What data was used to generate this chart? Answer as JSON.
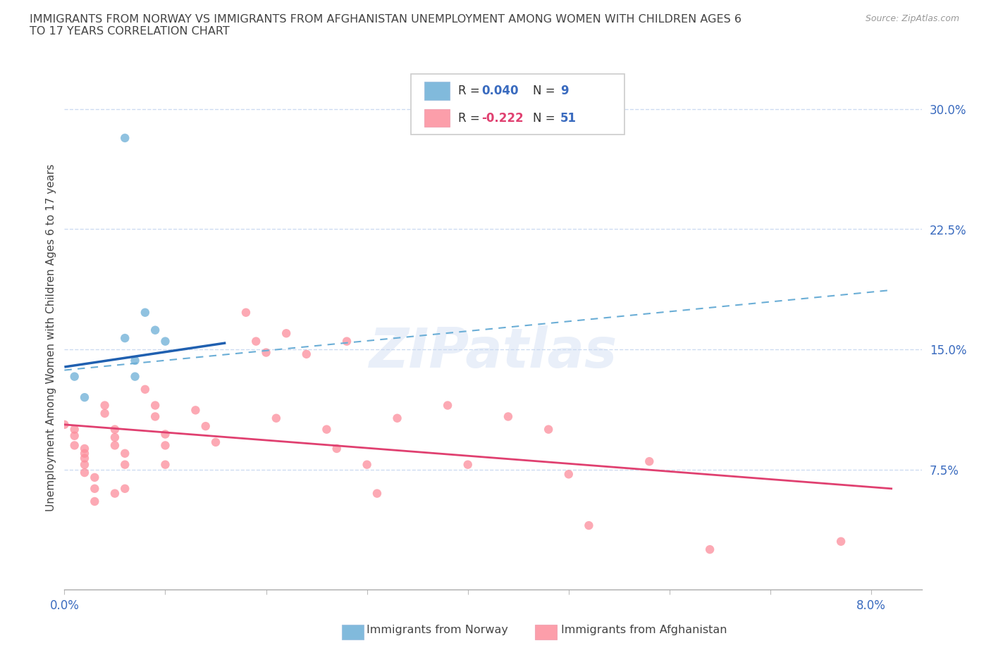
{
  "title_line1": "IMMIGRANTS FROM NORWAY VS IMMIGRANTS FROM AFGHANISTAN UNEMPLOYMENT AMONG WOMEN WITH CHILDREN AGES 6",
  "title_line2": "TO 17 YEARS CORRELATION CHART",
  "source": "Source: ZipAtlas.com",
  "ylabel": "Unemployment Among Women with Children Ages 6 to 17 years",
  "xlim": [
    0.0,
    0.085
  ],
  "ylim": [
    0.0,
    0.315
  ],
  "xticks": [
    0.0,
    0.01,
    0.02,
    0.03,
    0.04,
    0.05,
    0.06,
    0.07,
    0.08
  ],
  "xtick_labels": [
    "0.0%",
    "",
    "",
    "",
    "",
    "",
    "",
    "",
    "8.0%"
  ],
  "ytick_right": [
    0.075,
    0.15,
    0.225,
    0.3
  ],
  "ytick_right_labels": [
    "7.5%",
    "15.0%",
    "22.5%",
    "30.0%"
  ],
  "norway_color": "#6baed6",
  "afghanistan_color": "#fc8d9b",
  "norway_R": 0.04,
  "norway_N": 9,
  "afghanistan_R": -0.222,
  "afghanistan_N": 51,
  "norway_scatter_x": [
    0.001,
    0.002,
    0.006,
    0.008,
    0.009,
    0.01,
    0.006,
    0.007,
    0.007
  ],
  "norway_scatter_y": [
    0.133,
    0.12,
    0.282,
    0.173,
    0.162,
    0.155,
    0.157,
    0.133,
    0.143
  ],
  "afghanistan_scatter_x": [
    0.0,
    0.001,
    0.001,
    0.001,
    0.002,
    0.002,
    0.002,
    0.002,
    0.002,
    0.003,
    0.003,
    0.003,
    0.004,
    0.004,
    0.005,
    0.005,
    0.005,
    0.005,
    0.006,
    0.006,
    0.006,
    0.008,
    0.009,
    0.009,
    0.01,
    0.01,
    0.01,
    0.013,
    0.014,
    0.015,
    0.018,
    0.019,
    0.02,
    0.021,
    0.022,
    0.024,
    0.026,
    0.027,
    0.028,
    0.03,
    0.031,
    0.033,
    0.038,
    0.04,
    0.044,
    0.048,
    0.05,
    0.052,
    0.058,
    0.064,
    0.077
  ],
  "afghanistan_scatter_y": [
    0.103,
    0.1,
    0.096,
    0.09,
    0.088,
    0.085,
    0.082,
    0.078,
    0.073,
    0.07,
    0.063,
    0.055,
    0.115,
    0.11,
    0.1,
    0.095,
    0.09,
    0.06,
    0.085,
    0.078,
    0.063,
    0.125,
    0.115,
    0.108,
    0.097,
    0.09,
    0.078,
    0.112,
    0.102,
    0.092,
    0.173,
    0.155,
    0.148,
    0.107,
    0.16,
    0.147,
    0.1,
    0.088,
    0.155,
    0.078,
    0.06,
    0.107,
    0.115,
    0.078,
    0.108,
    0.1,
    0.072,
    0.04,
    0.08,
    0.025,
    0.03
  ],
  "norway_trend_x": [
    0.0,
    0.016
  ],
  "norway_trend_y": [
    0.139,
    0.154
  ],
  "afghanistan_trend_x": [
    0.0,
    0.082
  ],
  "afghanistan_trend_y": [
    0.103,
    0.063
  ],
  "dashed_line_x": [
    0.0,
    0.082
  ],
  "dashed_line_y": [
    0.137,
    0.187
  ],
  "watermark": "ZIPatlas",
  "grid_color": "#c8d8f0",
  "bg_color": "#ffffff",
  "text_color": "#444444",
  "axis_color": "#3a6bbf"
}
